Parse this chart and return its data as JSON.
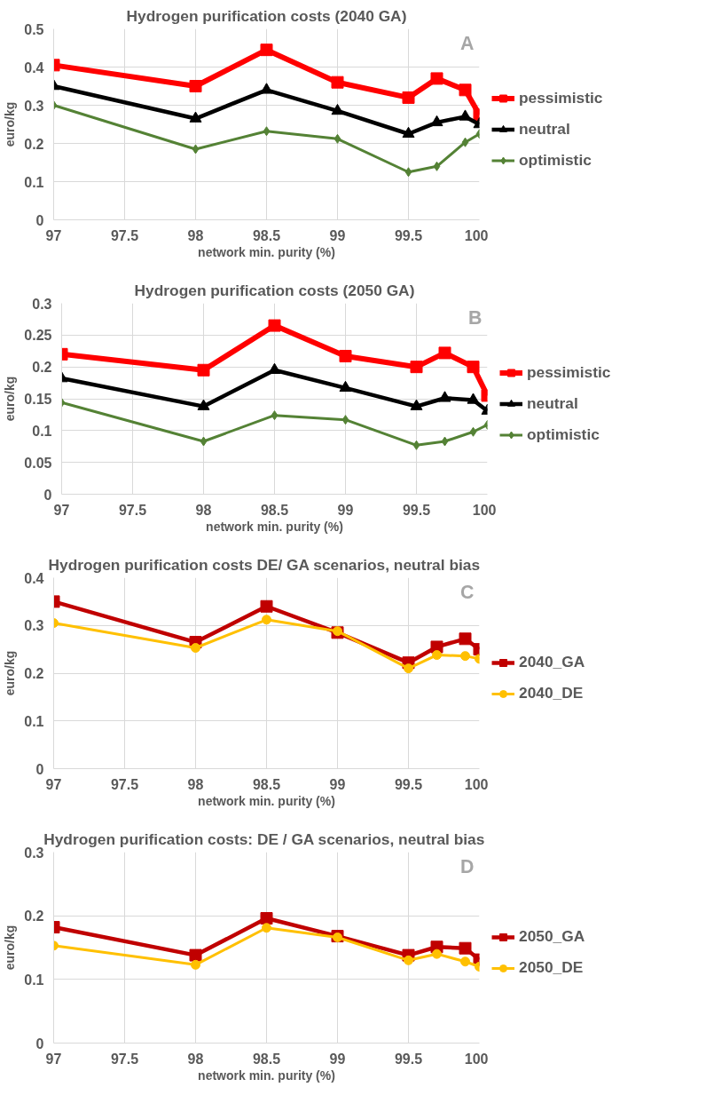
{
  "chart_data": [
    {
      "type": "line",
      "title": "Hydrogen purification costs (2040 GA)",
      "xlabel": "network min. purity (%)",
      "ylabel": "euro/kg",
      "annotations": [
        "A"
      ],
      "x": [
        97,
        98,
        98.5,
        99,
        99.5,
        99.7,
        99.9,
        100
      ],
      "xlim": [
        97,
        100
      ],
      "xticks": [
        97,
        97.5,
        98,
        98.5,
        99,
        99.5,
        100
      ],
      "ylim": [
        0,
        0.5
      ],
      "yticks": [
        0,
        0.1,
        0.2,
        0.3,
        0.4,
        0.5
      ],
      "grid": true,
      "legend": "right",
      "series": [
        {
          "name": "pessimistic",
          "color": "#ff0000",
          "marker": "square",
          "values": [
            0.405,
            0.35,
            0.445,
            0.36,
            0.32,
            0.37,
            0.34,
            0.275
          ]
        },
        {
          "name": "neutral",
          "color": "#000000",
          "marker": "triangle",
          "values": [
            0.35,
            0.265,
            0.34,
            0.285,
            0.225,
            0.255,
            0.27,
            0.25
          ]
        },
        {
          "name": "optimistic",
          "color": "#548235",
          "marker": "diamond",
          "values": [
            0.3,
            0.185,
            0.232,
            0.212,
            0.125,
            0.14,
            0.203,
            0.225
          ]
        }
      ]
    },
    {
      "type": "line",
      "title": "Hydrogen purification costs (2050 GA)",
      "xlabel": "network min. purity (%)",
      "ylabel": "euro/kg",
      "annotations": [
        "B"
      ],
      "x": [
        97,
        98,
        98.5,
        99,
        99.5,
        99.7,
        99.9,
        100
      ],
      "xlim": [
        97,
        100
      ],
      "xticks": [
        97,
        97.5,
        98,
        98.5,
        99,
        99.5,
        100
      ],
      "ylim": [
        0,
        0.3
      ],
      "yticks": [
        0,
        0.05,
        0.1,
        0.15,
        0.2,
        0.25,
        0.3
      ],
      "grid": true,
      "legend": "right",
      "series": [
        {
          "name": "pessimistic",
          "color": "#ff0000",
          "marker": "square",
          "values": [
            0.22,
            0.195,
            0.265,
            0.217,
            0.2,
            0.222,
            0.2,
            0.155
          ]
        },
        {
          "name": "neutral",
          "color": "#000000",
          "marker": "triangle",
          "values": [
            0.182,
            0.138,
            0.195,
            0.167,
            0.138,
            0.151,
            0.148,
            0.131
          ]
        },
        {
          "name": "optimistic",
          "color": "#548235",
          "marker": "diamond",
          "values": [
            0.144,
            0.083,
            0.124,
            0.117,
            0.077,
            0.083,
            0.098,
            0.109
          ]
        }
      ]
    },
    {
      "type": "line",
      "title": "Hydrogen purification costs  DE/ GA scenarios, neutral bias",
      "xlabel": "network min. purity (%)",
      "ylabel": "euro/kg",
      "annotations": [
        "C"
      ],
      "x": [
        97,
        98,
        98.5,
        99,
        99.5,
        99.7,
        99.9,
        100
      ],
      "xlim": [
        97,
        100
      ],
      "xticks": [
        97,
        97.5,
        98,
        98.5,
        99,
        99.5,
        100
      ],
      "ylim": [
        0,
        0.4
      ],
      "yticks": [
        0,
        0.1,
        0.2,
        0.3,
        0.4
      ],
      "grid": true,
      "legend": "right",
      "series": [
        {
          "name": "2040_GA",
          "color": "#c00000",
          "marker": "square",
          "values": [
            0.35,
            0.265,
            0.34,
            0.285,
            0.222,
            0.255,
            0.272,
            0.25
          ]
        },
        {
          "name": "2040_DE",
          "color": "#ffc000",
          "marker": "circle",
          "values": [
            0.305,
            0.253,
            0.312,
            0.288,
            0.21,
            0.238,
            0.236,
            0.23
          ]
        }
      ]
    },
    {
      "type": "line",
      "title": "Hydrogen purification costs:  DE / GA scenarios, neutral bias",
      "xlabel": "network min. purity (%)",
      "ylabel": "euro/kg",
      "annotations": [
        "D"
      ],
      "x": [
        97,
        98,
        98.5,
        99,
        99.5,
        99.7,
        99.9,
        100
      ],
      "xlim": [
        97,
        100
      ],
      "xticks": [
        97,
        97.5,
        98,
        98.5,
        99,
        99.5,
        100
      ],
      "ylim": [
        0,
        0.3
      ],
      "yticks": [
        0,
        0.1,
        0.2,
        0.3
      ],
      "grid": true,
      "legend": "right",
      "series": [
        {
          "name": "2050_GA",
          "color": "#c00000",
          "marker": "square",
          "values": [
            0.182,
            0.138,
            0.196,
            0.168,
            0.138,
            0.151,
            0.149,
            0.131
          ]
        },
        {
          "name": "2050_DE",
          "color": "#ffc000",
          "marker": "circle",
          "values": [
            0.153,
            0.123,
            0.181,
            0.166,
            0.13,
            0.14,
            0.128,
            0.12
          ]
        }
      ]
    }
  ]
}
